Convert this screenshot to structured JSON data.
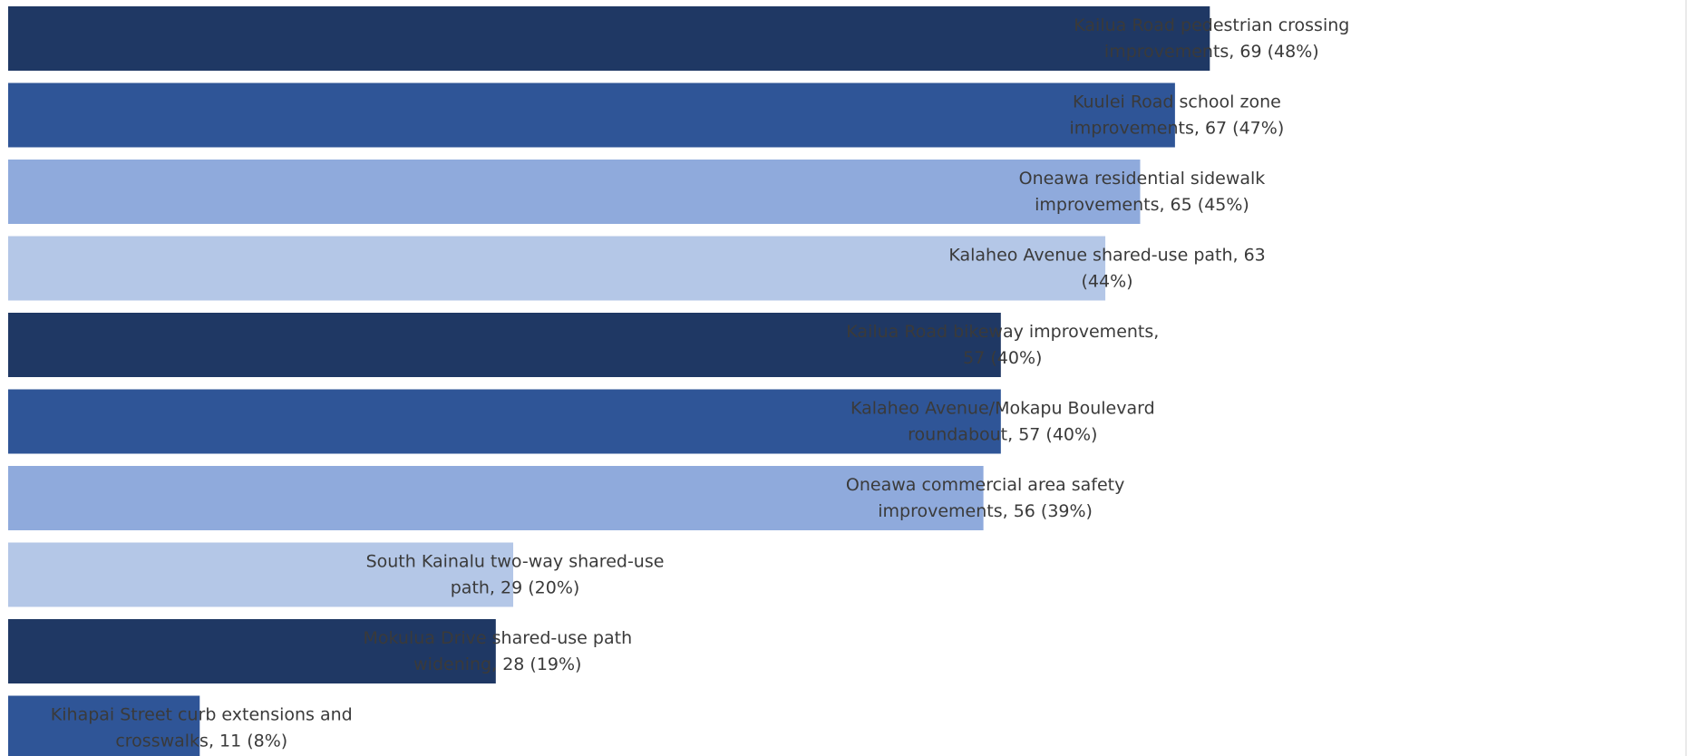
{
  "chart_data": {
    "type": "bar",
    "orientation": "horizontal",
    "title": "",
    "xlabel": "",
    "ylabel": "",
    "xlim": [
      0,
      82
    ],
    "grid": false,
    "legend": "none",
    "palette": [
      "#1f3864",
      "#2f5597",
      "#8faadc",
      "#b4c7e7"
    ],
    "categories": [
      "Kailua Road pedestrian crossing improvements",
      "Kuulei Road school zone improvements",
      "Oneawa residential sidewalk improvements",
      "Kalaheo Avenue shared-use path",
      "Kailua Road bikeway improvements",
      "Kalaheo Avenue/Mokapu Boulevard roundabout",
      "Oneawa commercial area safety improvements",
      "South Kainalu two-way shared-use path",
      "Mokulua Drive shared-use path widening",
      "Kihapai Street curb extensions and crosswalks"
    ],
    "values": [
      69,
      67,
      65,
      63,
      57,
      57,
      56,
      29,
      28,
      11
    ],
    "percents": [
      "48%",
      "47%",
      "45%",
      "44%",
      "40%",
      "40%",
      "39%",
      "20%",
      "19%",
      "8%"
    ],
    "data_labels": [
      [
        "Kailua Road pedestrian crossing",
        "improvements, 69 (48%)"
      ],
      [
        "Kuulei Road school zone",
        "improvements, 67 (47%)"
      ],
      [
        "Oneawa residential sidewalk",
        "improvements, 65 (45%)"
      ],
      [
        "Kalaheo Avenue shared-use path, 63",
        "(44%)"
      ],
      [
        "Kailua Road bikeway improvements,",
        "57 (40%)"
      ],
      [
        "Kalaheo Avenue/Mokapu Boulevard",
        "roundabout, 57 (40%)"
      ],
      [
        "Oneawa commercial area safety",
        "improvements, 56 (39%)"
      ],
      [
        "South Kainalu two-way shared-use",
        "path, 29 (20%)"
      ],
      [
        "Mokulua Drive shared-use path",
        "widening, 28 (19%)"
      ],
      [
        "Kihapai Street curb extensions and",
        "crosswalks, 11 (8%)"
      ]
    ]
  }
}
